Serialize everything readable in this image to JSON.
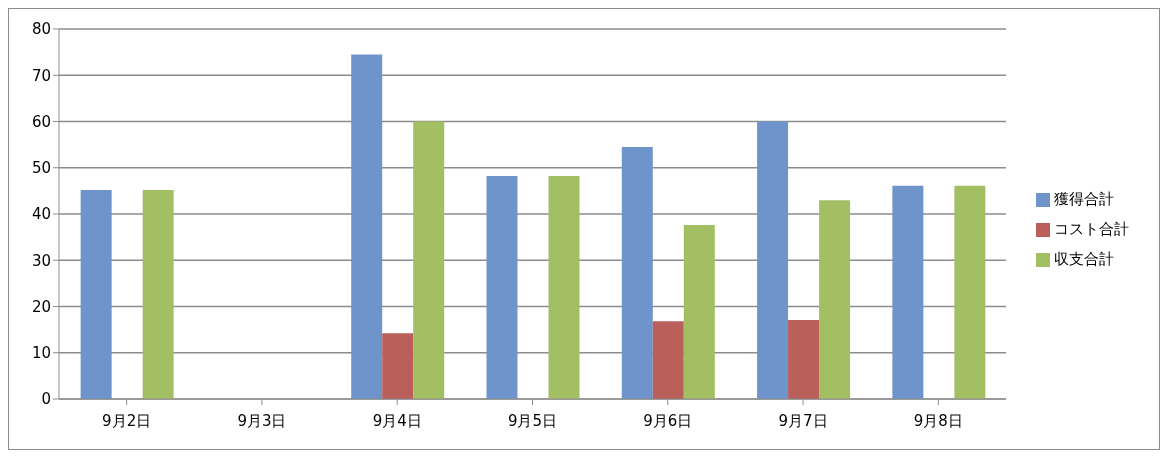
{
  "chart_data": {
    "type": "bar",
    "categories": [
      "9月2日",
      "9月3日",
      "9月4日",
      "9月5日",
      "9月6日",
      "9月7日",
      "9月8日"
    ],
    "series": [
      {
        "name": "獲得合計",
        "color": "#6f93cb",
        "values": [
          45.2,
          null,
          74.5,
          48.2,
          54.5,
          60,
          46.1
        ]
      },
      {
        "name": "コスト合計",
        "color": "#bb5f5b",
        "values": [
          null,
          null,
          14.2,
          null,
          16.8,
          17.1,
          null
        ]
      },
      {
        "name": "収支合計",
        "color": "#a3bf64",
        "values": [
          45.2,
          null,
          60,
          48.2,
          37.6,
          43,
          46.1
        ]
      }
    ],
    "ylim": [
      0,
      80
    ],
    "yticks": [
      0,
      10,
      20,
      30,
      40,
      50,
      60,
      70,
      80
    ],
    "grid": "y",
    "legend": "right"
  }
}
